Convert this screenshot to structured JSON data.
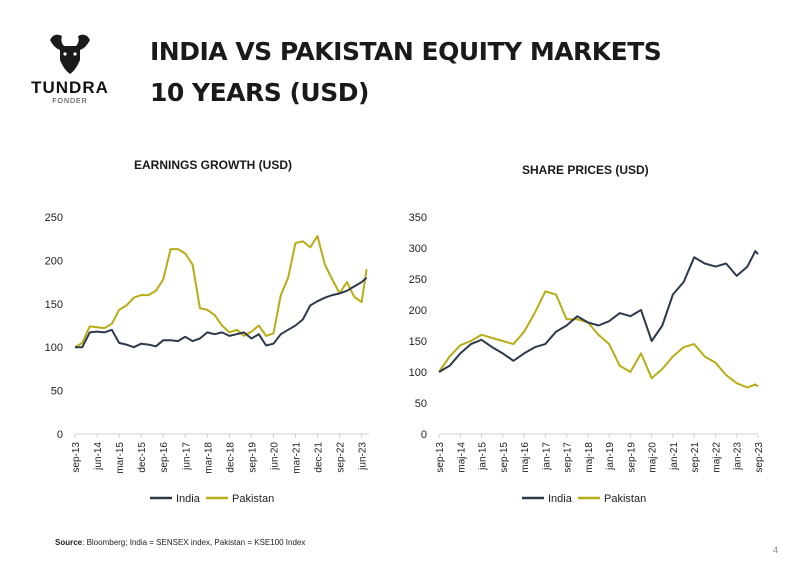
{
  "header": {
    "title_line1": "INDIA VS PAKISTAN EQUITY MARKETS",
    "title_line2": "10 YEARS (USD)",
    "logo_word": "TUNDRA",
    "logo_sub": "FONDER"
  },
  "footer": {
    "source_label": "Source",
    "source_text": ": Bloomberg; India = SENSEX index, Pakistan = KSE100 Index",
    "page_number": "4"
  },
  "colors": {
    "india": "#2e3a4a",
    "pakistan": "#b7ad16",
    "axis": "#d0d0d0",
    "text": "#222222"
  },
  "chart_data": [
    {
      "type": "line",
      "title": "EARNINGS GROWTH (USD)",
      "ylim": [
        0,
        250
      ],
      "yticks": [
        0,
        50,
        100,
        150,
        200,
        250
      ],
      "x_tick_labels": [
        "sep-13",
        "jun-14",
        "mar-15",
        "dec-15",
        "sep-16",
        "jun-17",
        "mar-18",
        "dec-18",
        "sep-19",
        "jun-20",
        "mar-21",
        "dec-21",
        "sep-22",
        "jun-23"
      ],
      "legend": "bottom",
      "grid": false,
      "series": [
        {
          "name": "India",
          "color": "#2e3a4a",
          "points": [
            [
              "sep-13",
              100
            ],
            [
              "dec-13",
              100
            ],
            [
              "mar-14",
              117
            ],
            [
              "jun-14",
              118
            ],
            [
              "sep-14",
              117
            ],
            [
              "dec-14",
              120
            ],
            [
              "mar-15",
              105
            ],
            [
              "jun-15",
              103
            ],
            [
              "sep-15",
              100
            ],
            [
              "dec-15",
              104
            ],
            [
              "mar-16",
              103
            ],
            [
              "jun-16",
              101
            ],
            [
              "sep-16",
              108
            ],
            [
              "dec-16",
              108
            ],
            [
              "mar-17",
              107
            ],
            [
              "jun-17",
              112
            ],
            [
              "sep-17",
              107
            ],
            [
              "dec-17",
              110
            ],
            [
              "mar-18",
              117
            ],
            [
              "jun-18",
              115
            ],
            [
              "sep-18",
              117
            ],
            [
              "dec-18",
              113
            ],
            [
              "mar-19",
              115
            ],
            [
              "jun-19",
              117
            ],
            [
              "sep-19",
              110
            ],
            [
              "dec-19",
              115
            ],
            [
              "mar-20",
              102
            ],
            [
              "jun-20",
              104
            ],
            [
              "sep-20",
              115
            ],
            [
              "dec-20",
              120
            ],
            [
              "mar-21",
              125
            ],
            [
              "jun-21",
              132
            ],
            [
              "sep-21",
              148
            ],
            [
              "dec-21",
              153
            ],
            [
              "mar-22",
              157
            ],
            [
              "jun-22",
              160
            ],
            [
              "sep-22",
              162
            ],
            [
              "dec-22",
              165
            ],
            [
              "mar-23",
              170
            ],
            [
              "jun-23",
              175
            ],
            [
              "aug-23",
              180
            ]
          ]
        },
        {
          "name": "Pakistan",
          "color": "#b7ad16",
          "points": [
            [
              "sep-13",
              100
            ],
            [
              "dec-13",
              105
            ],
            [
              "mar-14",
              124
            ],
            [
              "jun-14",
              123
            ],
            [
              "sep-14",
              122
            ],
            [
              "dec-14",
              127
            ],
            [
              "mar-15",
              143
            ],
            [
              "jun-15",
              148
            ],
            [
              "sep-15",
              157
            ],
            [
              "dec-15",
              160
            ],
            [
              "mar-16",
              160
            ],
            [
              "jun-16",
              165
            ],
            [
              "sep-16",
              178
            ],
            [
              "dec-16",
              213
            ],
            [
              "mar-17",
              213
            ],
            [
              "jun-17",
              208
            ],
            [
              "sep-17",
              195
            ],
            [
              "dec-17",
              145
            ],
            [
              "mar-18",
              143
            ],
            [
              "jun-18",
              137
            ],
            [
              "sep-18",
              125
            ],
            [
              "dec-18",
              117
            ],
            [
              "mar-19",
              120
            ],
            [
              "jun-19",
              113
            ],
            [
              "sep-19",
              118
            ],
            [
              "dec-19",
              125
            ],
            [
              "mar-20",
              113
            ],
            [
              "jun-20",
              116
            ],
            [
              "sep-20",
              160
            ],
            [
              "dec-20",
              180
            ],
            [
              "mar-21",
              220
            ],
            [
              "jun-21",
              222
            ],
            [
              "sep-21",
              215
            ],
            [
              "dec-21",
              228
            ],
            [
              "mar-22",
              195
            ],
            [
              "jun-22",
              178
            ],
            [
              "sep-22",
              162
            ],
            [
              "dec-22",
              175
            ],
            [
              "mar-23",
              158
            ],
            [
              "jun-23",
              152
            ],
            [
              "aug-23",
              190
            ]
          ]
        }
      ]
    },
    {
      "type": "line",
      "title": "SHARE PRICES (USD)",
      "ylim": [
        0,
        350
      ],
      "yticks": [
        0,
        50,
        100,
        150,
        200,
        250,
        300,
        350
      ],
      "x_tick_labels": [
        "sep-13",
        "maj-14",
        "jan-15",
        "sep-15",
        "maj-16",
        "jan-17",
        "sep-17",
        "maj-18",
        "jan-19",
        "sep-19",
        "maj-20",
        "jan-21",
        "sep-21",
        "maj-22",
        "jan-23",
        "sep-23"
      ],
      "legend": "bottom",
      "grid": false,
      "series": [
        {
          "name": "India",
          "color": "#2e3a4a",
          "points": [
            [
              "sep-13",
              100
            ],
            [
              "jan-14",
              110
            ],
            [
              "maj-14",
              130
            ],
            [
              "sep-14",
              145
            ],
            [
              "jan-15",
              152
            ],
            [
              "maj-15",
              140
            ],
            [
              "sep-15",
              130
            ],
            [
              "jan-16",
              118
            ],
            [
              "maj-16",
              130
            ],
            [
              "sep-16",
              140
            ],
            [
              "jan-17",
              145
            ],
            [
              "maj-17",
              165
            ],
            [
              "sep-17",
              175
            ],
            [
              "jan-18",
              190
            ],
            [
              "maj-18",
              180
            ],
            [
              "sep-18",
              175
            ],
            [
              "jan-19",
              182
            ],
            [
              "maj-19",
              195
            ],
            [
              "sep-19",
              190
            ],
            [
              "jan-20",
              200
            ],
            [
              "maj-20",
              150
            ],
            [
              "sep-20",
              175
            ],
            [
              "jan-21",
              225
            ],
            [
              "maj-21",
              245
            ],
            [
              "sep-21",
              285
            ],
            [
              "jan-22",
              275
            ],
            [
              "maj-22",
              270
            ],
            [
              "sep-22",
              275
            ],
            [
              "jan-23",
              255
            ],
            [
              "maj-23",
              270
            ],
            [
              "aug-23",
              295
            ],
            [
              "sep-23",
              290
            ]
          ]
        },
        {
          "name": "Pakistan",
          "color": "#b7ad16",
          "points": [
            [
              "sep-13",
              100
            ],
            [
              "jan-14",
              125
            ],
            [
              "maj-14",
              143
            ],
            [
              "sep-14",
              150
            ],
            [
              "jan-15",
              160
            ],
            [
              "maj-15",
              155
            ],
            [
              "sep-15",
              150
            ],
            [
              "jan-16",
              145
            ],
            [
              "maj-16",
              165
            ],
            [
              "sep-16",
              195
            ],
            [
              "jan-17",
              230
            ],
            [
              "maj-17",
              225
            ],
            [
              "sep-17",
              185
            ],
            [
              "jan-18",
              185
            ],
            [
              "maj-18",
              180
            ],
            [
              "sep-18",
              160
            ],
            [
              "jan-19",
              145
            ],
            [
              "maj-19",
              110
            ],
            [
              "sep-19",
              100
            ],
            [
              "jan-20",
              130
            ],
            [
              "maj-20",
              90
            ],
            [
              "sep-20",
              105
            ],
            [
              "jan-21",
              125
            ],
            [
              "maj-21",
              140
            ],
            [
              "sep-21",
              145
            ],
            [
              "jan-22",
              125
            ],
            [
              "maj-22",
              115
            ],
            [
              "sep-22",
              95
            ],
            [
              "jan-23",
              82
            ],
            [
              "maj-23",
              75
            ],
            [
              "aug-23",
              80
            ],
            [
              "sep-23",
              77
            ]
          ]
        }
      ]
    }
  ]
}
